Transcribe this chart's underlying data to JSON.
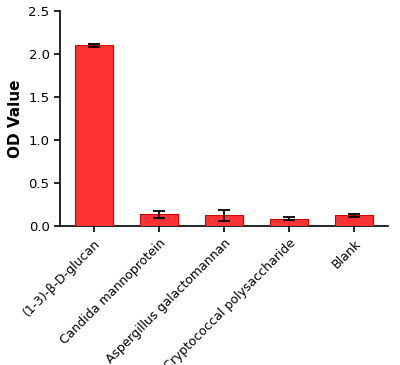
{
  "categories": [
    "(1-3)-β-D-glucan",
    "Candida mannoprotein",
    "Aspergillus galactomannan",
    "Cryptococcal polysaccharide",
    "Blank"
  ],
  "values": [
    2.1,
    0.14,
    0.13,
    0.09,
    0.13
  ],
  "errors": [
    0.02,
    0.04,
    0.065,
    0.018,
    0.018
  ],
  "bar_color": "#FF3333",
  "bar_edge_color": "#CC0000",
  "error_color": "black",
  "ylabel": "OD Value",
  "ylim": [
    0,
    2.5
  ],
  "yticks": [
    0.0,
    0.5,
    1.0,
    1.5,
    2.0,
    2.5
  ],
  "bar_width": 0.58,
  "figsize": [
    4.0,
    3.65
  ],
  "dpi": 100,
  "background_color": "#ffffff",
  "tick_label_fontsize": 9.0,
  "ylabel_fontsize": 11,
  "rotation": 45
}
